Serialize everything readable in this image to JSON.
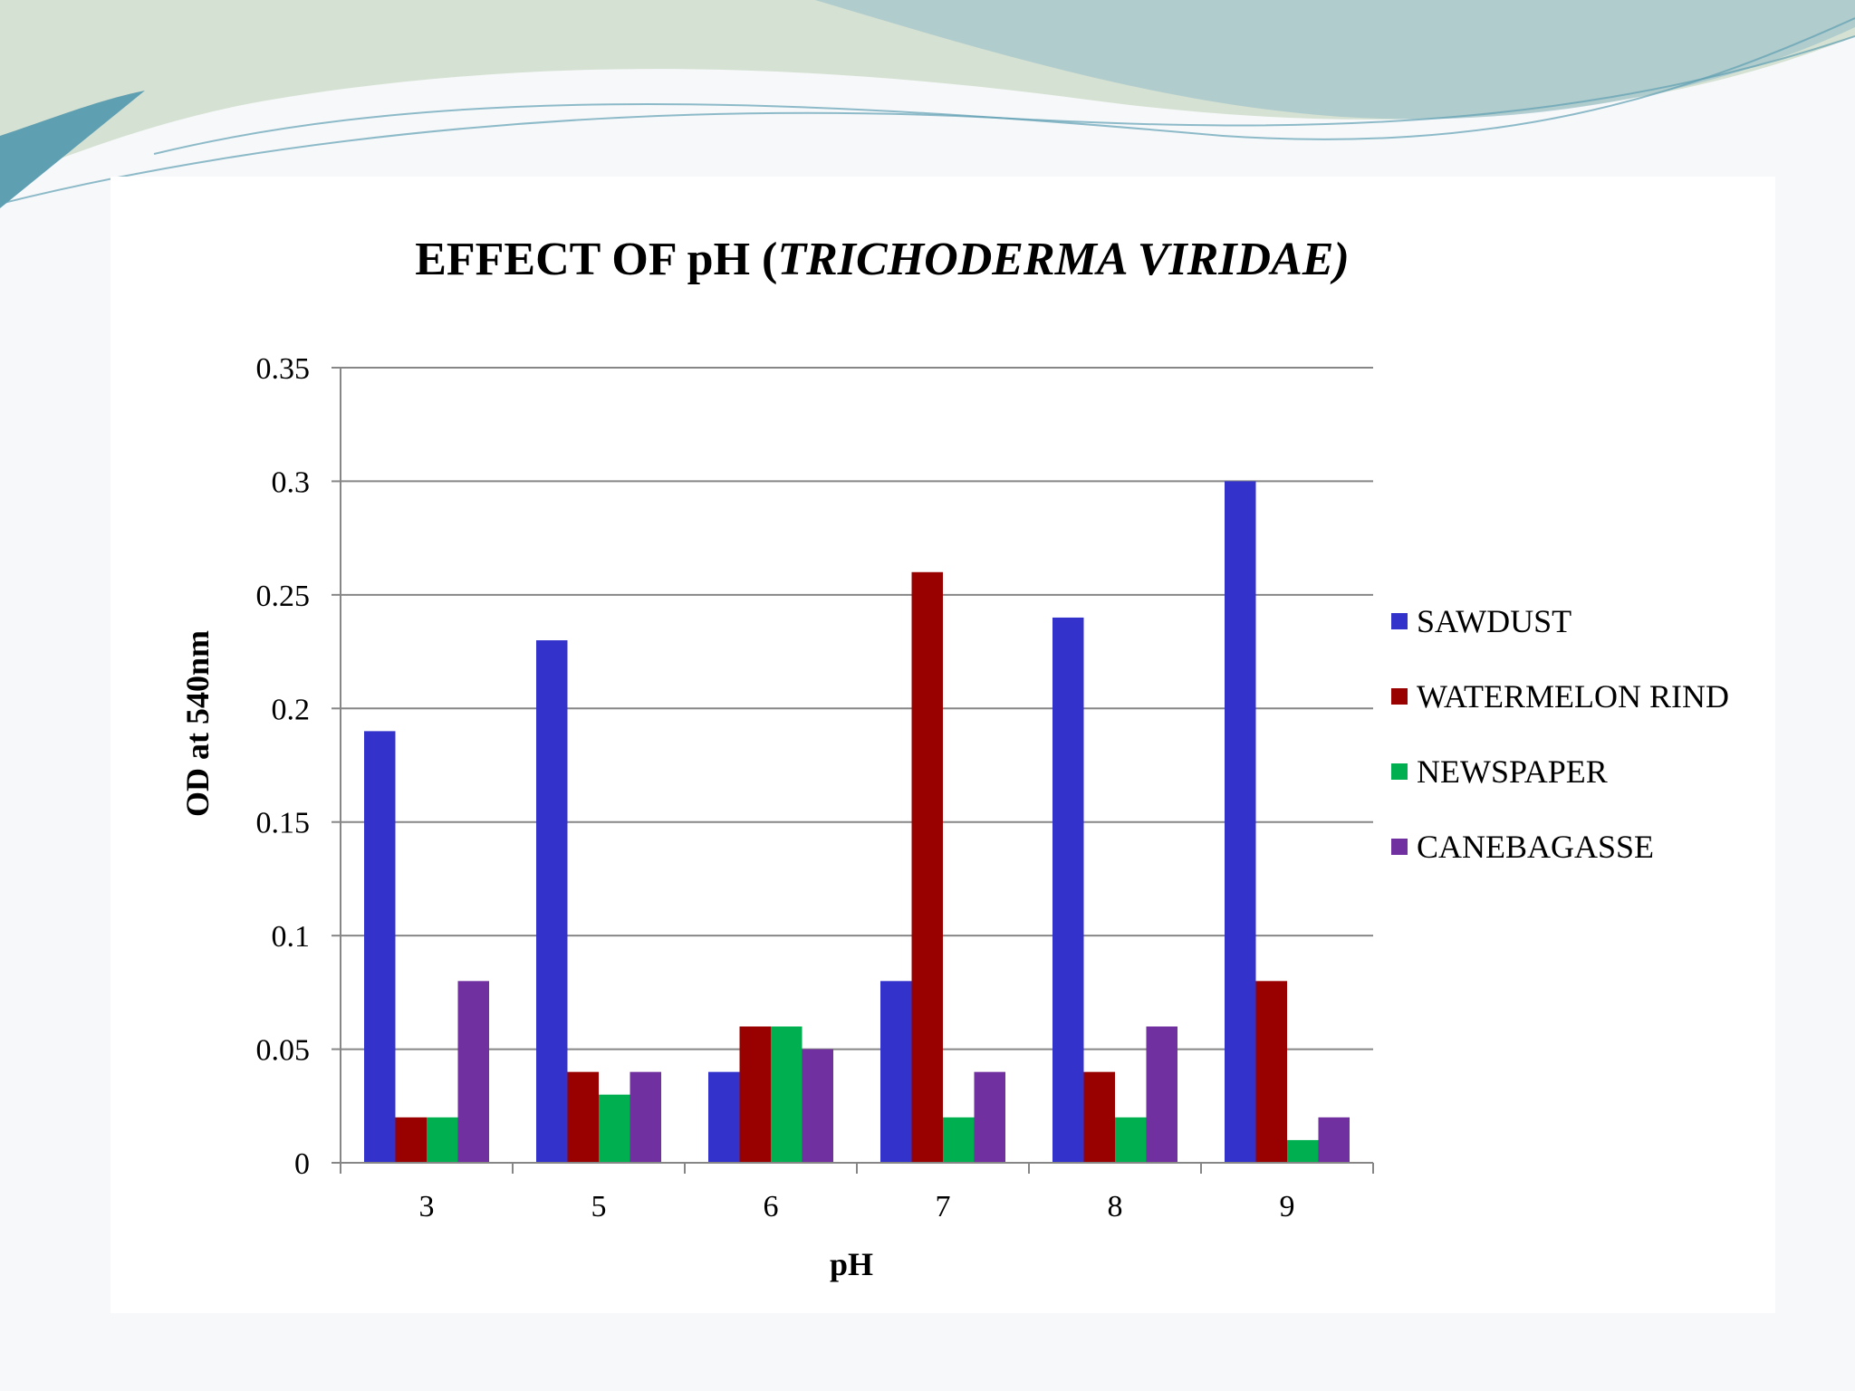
{
  "slide": {
    "colors": {
      "wave_dark": "#5f9fb2",
      "wave_mid": "#a9c8cc",
      "wave_light": "#c9d9c4",
      "panel": "#ffffff",
      "background": "#f7f8fa"
    }
  },
  "chart_data": {
    "type": "bar",
    "title": {
      "prefix": "EFFECT OF pH (",
      "italic": "TRICHODERMA VIRIDAE)"
    },
    "xlabel": "pH",
    "ylabel": "OD at 540nm",
    "categories": [
      "3",
      "5",
      "6",
      "7",
      "8",
      "9"
    ],
    "ylim": [
      0,
      0.35
    ],
    "yticks": [
      {
        "value": 0,
        "label": "0"
      },
      {
        "value": 0.05,
        "label": "0.05"
      },
      {
        "value": 0.1,
        "label": "0.1"
      },
      {
        "value": 0.15,
        "label": "0.15"
      },
      {
        "value": 0.2,
        "label": "0.2"
      },
      {
        "value": 0.25,
        "label": "0.25"
      },
      {
        "value": 0.3,
        "label": "0.3"
      },
      {
        "value": 0.35,
        "label": "0.35"
      }
    ],
    "grid": true,
    "legend_position": "right",
    "series": [
      {
        "name": "SAWDUST",
        "color": "#3333cc",
        "values": [
          0.19,
          0.23,
          0.04,
          0.08,
          0.24,
          0.3
        ]
      },
      {
        "name": "WATERMELON RIND",
        "color": "#990000",
        "values": [
          0.02,
          0.04,
          0.06,
          0.26,
          0.04,
          0.08
        ]
      },
      {
        "name": "NEWSPAPER",
        "color": "#00b050",
        "values": [
          0.02,
          0.03,
          0.06,
          0.02,
          0.02,
          0.01
        ]
      },
      {
        "name": "CANEBAGASSE",
        "color": "#7030a0",
        "values": [
          0.08,
          0.04,
          0.05,
          0.04,
          0.06,
          0.02
        ]
      }
    ]
  }
}
